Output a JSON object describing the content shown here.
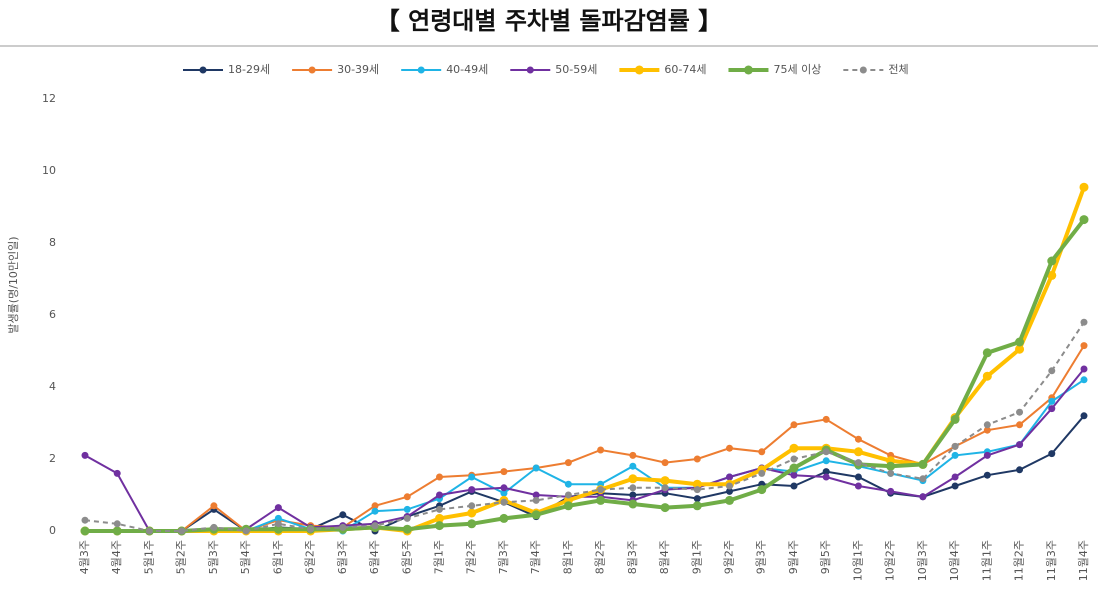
{
  "chart_data": {
    "type": "line",
    "title": "【 연령대별 주차별 돌파감염률 】",
    "y_label": "발생률(명/10만인일)",
    "categories": [
      "4월3주",
      "4월4주",
      "5월1주",
      "5월2주",
      "5월3주",
      "5월4주",
      "6월1주",
      "6월2주",
      "6월3주",
      "6월4주",
      "6월5주",
      "7월1주",
      "7월2주",
      "7월3주",
      "7월4주",
      "8월1주",
      "8월2주",
      "8월3주",
      "8월4주",
      "9월1주",
      "9월2주",
      "9월3주",
      "9월4주",
      "9월5주",
      "10월1주",
      "10월2주",
      "10월3주",
      "10월4주",
      "11월1주",
      "11월2주",
      "11월3주",
      "11월4주"
    ],
    "ylim": [
      0,
      12
    ],
    "yticks": [
      0,
      2,
      4,
      6,
      8,
      10,
      12
    ],
    "grid": false,
    "legend": "top",
    "series": [
      {
        "name": "18-29세",
        "color": "#1f3864",
        "line_width": 2,
        "line_style": "solid",
        "values": [
          0,
          0,
          0,
          0,
          0.6,
          0,
          0.1,
          0.05,
          0.45,
          0,
          0.4,
          0.7,
          1.1,
          0.8,
          0.4,
          0.95,
          1.05,
          1.0,
          1.05,
          0.9,
          1.1,
          1.3,
          1.25,
          1.65,
          1.5,
          1.05,
          0.95,
          1.25,
          1.55,
          1.7,
          2.15,
          3.2
        ]
      },
      {
        "name": "30-39세",
        "color": "#ed7d31",
        "line_width": 2,
        "line_style": "solid",
        "values": [
          0,
          0,
          0,
          0,
          0.7,
          0,
          0.3,
          0.15,
          0.1,
          0.7,
          0.95,
          1.5,
          1.55,
          1.65,
          1.75,
          1.9,
          2.25,
          2.1,
          1.9,
          2.0,
          2.3,
          2.2,
          2.95,
          3.1,
          2.55,
          2.1,
          1.85,
          2.35,
          2.8,
          2.95,
          3.7,
          5.15
        ]
      },
      {
        "name": "40-49세",
        "color": "#1fb4e6",
        "line_width": 2,
        "line_style": "solid",
        "values": [
          0,
          0,
          0,
          0,
          0.05,
          0,
          0.35,
          0.05,
          0,
          0.55,
          0.6,
          0.9,
          1.5,
          1.05,
          1.75,
          1.3,
          1.3,
          1.8,
          1.2,
          1.2,
          1.5,
          1.75,
          1.65,
          1.95,
          1.8,
          1.6,
          1.4,
          2.1,
          2.2,
          2.4,
          3.6,
          4.2
        ]
      },
      {
        "name": "50-59세",
        "color": "#7030a0",
        "line_width": 2,
        "line_style": "solid",
        "values": [
          2.1,
          1.6,
          0,
          0,
          0.05,
          0.05,
          0.65,
          0.1,
          0.15,
          0.2,
          0.4,
          1.0,
          1.15,
          1.2,
          1.0,
          0.95,
          0.95,
          0.85,
          1.15,
          1.2,
          1.5,
          1.75,
          1.55,
          1.5,
          1.25,
          1.1,
          0.95,
          1.5,
          2.1,
          2.4,
          3.4,
          4.5
        ]
      },
      {
        "name": "60-74세",
        "color": "#ffc000",
        "line_width": 4,
        "line_style": "solid",
        "values": [
          0,
          0,
          0,
          0,
          0,
          0,
          0,
          0,
          0.05,
          0.1,
          0,
          0.35,
          0.5,
          0.85,
          0.5,
          0.85,
          1.15,
          1.45,
          1.4,
          1.3,
          1.3,
          1.7,
          2.3,
          2.3,
          2.2,
          1.95,
          1.85,
          3.15,
          4.3,
          5.05,
          7.1,
          9.55
        ]
      },
      {
        "name": "75세 이상",
        "color": "#70ad47",
        "line_width": 4,
        "line_style": "solid",
        "values": [
          0,
          0,
          0,
          0,
          0.05,
          0.05,
          0.05,
          0.05,
          0.05,
          0.1,
          0.05,
          0.15,
          0.2,
          0.35,
          0.45,
          0.7,
          0.85,
          0.75,
          0.65,
          0.7,
          0.85,
          1.15,
          1.75,
          2.25,
          1.85,
          1.8,
          1.85,
          3.1,
          4.95,
          5.25,
          7.5,
          8.65
        ]
      },
      {
        "name": "전체",
        "color": "#8c8c8c",
        "line_width": 2,
        "line_style": "dashed",
        "values": [
          0.3,
          0.2,
          0,
          0,
          0.1,
          0,
          0.2,
          0.05,
          0.1,
          0.15,
          0.35,
          0.6,
          0.7,
          0.8,
          0.85,
          1.0,
          1.15,
          1.2,
          1.2,
          1.15,
          1.25,
          1.6,
          2.0,
          2.2,
          1.9,
          1.6,
          1.45,
          2.35,
          2.95,
          3.3,
          4.45,
          5.8
        ]
      }
    ]
  }
}
